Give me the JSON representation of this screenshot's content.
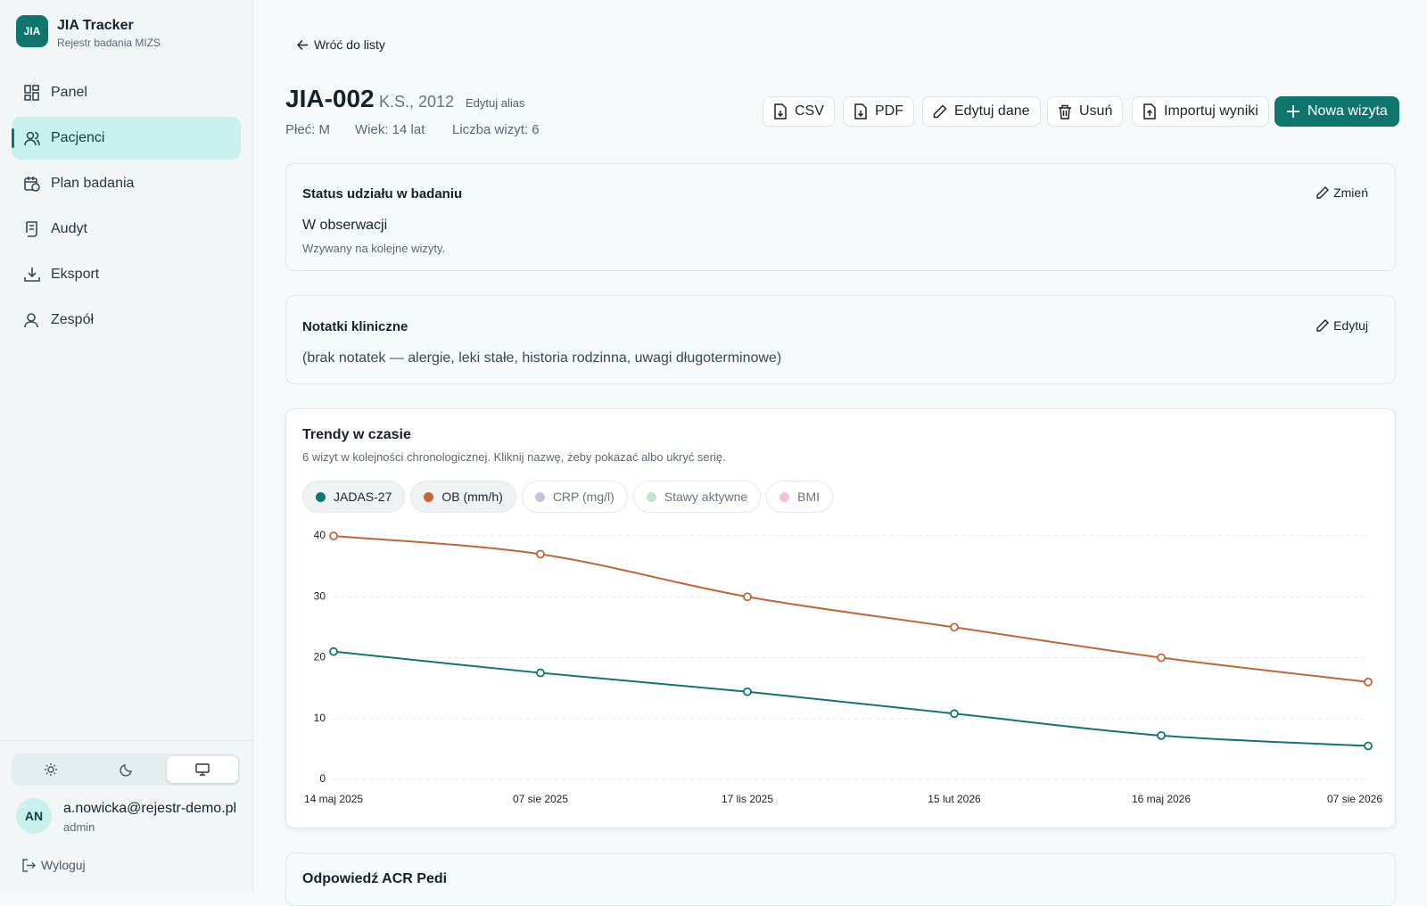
{
  "sidebar": {
    "logo": "JIA",
    "title": "JIA Tracker",
    "subtitle": "Rejestr badania MIZS",
    "nav": [
      "Panel",
      "Pacjenci",
      "Plan badania",
      "Audyt",
      "Eksport",
      "Zespół"
    ],
    "user": {
      "initials": "AN",
      "email": "a.nowicka@rejestr-demo.pl",
      "role": "admin"
    },
    "logout": "Wyloguj"
  },
  "header": {
    "back": "Wróć do listy",
    "id": "JIA-002",
    "alias": "K.S., 2012",
    "edit_alias": "Edytuj alias",
    "meta": [
      "Płeć: M",
      "Wiek: 14 lat",
      "Liczba wizyt: 6"
    ],
    "actions": [
      "CSV",
      "PDF",
      "Edytuj dane",
      "Usuń",
      "Importuj wyniki",
      "Nowa wizyta"
    ]
  },
  "status": {
    "title": "Status udziału w badaniu",
    "action": "Zmień",
    "value": "W obserwacji",
    "description": "Wzywany na kolejne wizyty."
  },
  "notes": {
    "title": "Notatki kliniczne",
    "action": "Edytuj",
    "text": "(brak notatek — alergie, leki stałe, historia rodzinna, uwagi długoterminowe)"
  },
  "chart_data": {
    "type": "line",
    "title": "Trendy w czasie",
    "subtitle": "6 wizyt w kolejności chronologicznej. Kliknij nazwę, żeby pokazać albo ukryć serię.",
    "categories": [
      "14 maj 2025",
      "07 sie 2025",
      "17 lis 2025",
      "15 lut 2026",
      "16 maj 2026",
      "07 sie 2026"
    ],
    "series": [
      {
        "name": "JADAS-27",
        "color": "#10766f",
        "visible": true,
        "values": [
          21,
          17.5,
          14.4,
          10.8,
          7.2,
          5.5
        ]
      },
      {
        "name": "OB (mm/h)",
        "color": "#c4643b",
        "visible": true,
        "values": [
          40,
          37,
          30,
          25,
          20,
          16
        ]
      },
      {
        "name": "CRP (mg/l)",
        "color": "#c9bfdf",
        "visible": false
      },
      {
        "name": "Stawy aktywne",
        "color": "#c3e5cb",
        "visible": false
      },
      {
        "name": "BMI",
        "color": "#f1c0dc",
        "visible": false
      }
    ],
    "ylim": [
      0,
      40
    ],
    "yticks": [
      0,
      10,
      20,
      30,
      40
    ],
    "grid": true
  },
  "next_section": {
    "title": "Odpowiedź ACR Pedi"
  }
}
